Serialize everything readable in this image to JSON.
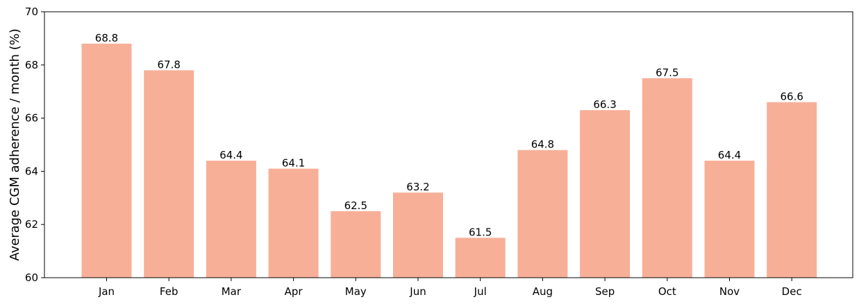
{
  "chart_data": {
    "type": "bar",
    "title": "",
    "xlabel": "",
    "ylabel": "Average CGM adherence / month (%)",
    "categories": [
      "Jan",
      "Feb",
      "Mar",
      "Apr",
      "May",
      "Jun",
      "Jul",
      "Aug",
      "Sep",
      "Oct",
      "Nov",
      "Dec"
    ],
    "values": [
      68.8,
      67.8,
      64.4,
      64.1,
      62.5,
      63.2,
      61.5,
      64.8,
      66.3,
      67.5,
      64.4,
      66.6
    ],
    "value_labels": [
      "68.8",
      "67.8",
      "64.4",
      "64.1",
      "62.5",
      "63.2",
      "61.5",
      "64.8",
      "66.3",
      "67.5",
      "64.4",
      "66.6"
    ],
    "ylim": [
      60,
      70
    ],
    "yticks": [
      60,
      62,
      64,
      66,
      68,
      70
    ],
    "ytick_labels": [
      "60",
      "62",
      "64",
      "66",
      "68",
      "70"
    ],
    "grid": false,
    "legend": "none",
    "bar_color": "#f8af97",
    "axis_color": "#000000"
  }
}
